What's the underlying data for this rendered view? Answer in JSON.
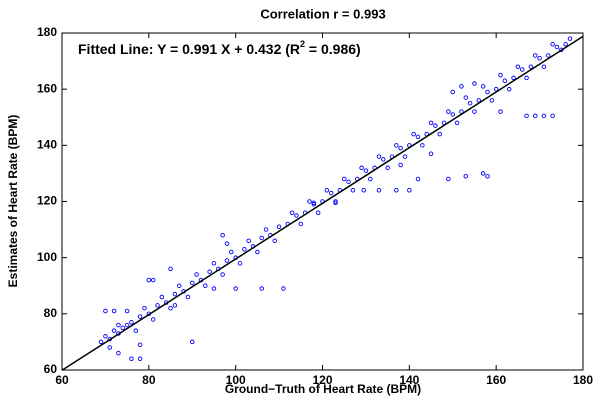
{
  "chart_data": {
    "type": "scatter",
    "title": "Correlation r = 0.993",
    "annotation": [
      "Fitted Line: Y = 0.991 X + 0.432 (R",
      "2",
      " = 0.986)"
    ],
    "xlabel": "Ground−Truth of Heart Rate (BPM)",
    "ylabel": "Estimates of Heart Rate (BPM)",
    "xlim": [
      60,
      180
    ],
    "ylim": [
      60,
      180
    ],
    "xticks": [
      60,
      80,
      100,
      120,
      140,
      160,
      180
    ],
    "yticks": [
      60,
      80,
      100,
      120,
      140,
      160,
      180
    ],
    "color": "#0000ff",
    "x": [
      69,
      70,
      71,
      72,
      73,
      74,
      75,
      76,
      78,
      80,
      82,
      84,
      86,
      88,
      90,
      92,
      94,
      96,
      98,
      100,
      102,
      104,
      106,
      108,
      110,
      112,
      114,
      116,
      118,
      120,
      122,
      124,
      126,
      128,
      130,
      132,
      134,
      136,
      138,
      140,
      142,
      144,
      146,
      148,
      150,
      152,
      154,
      156,
      158,
      160,
      162,
      164,
      166,
      168,
      170,
      172,
      174,
      176,
      177,
      71,
      73,
      77,
      79,
      81,
      83,
      85,
      87,
      89,
      91,
      93,
      95,
      97,
      99,
      101,
      103,
      105,
      107,
      109,
      113,
      115,
      117,
      119,
      121,
      123,
      125,
      127,
      129,
      131,
      133,
      135,
      137,
      139,
      141,
      143,
      145,
      147,
      149,
      151,
      153,
      155,
      157,
      159,
      161,
      163,
      165,
      167,
      169,
      171,
      173,
      175,
      70,
      72,
      75,
      76,
      78,
      73,
      85,
      90,
      95,
      100,
      106,
      111,
      97,
      98,
      129.5,
      133,
      137,
      140,
      142,
      149,
      153,
      157,
      158,
      167,
      169,
      171,
      173,
      161,
      152,
      150,
      155,
      118,
      123,
      138,
      145,
      80,
      81,
      86,
      78
    ],
    "values": [
      70,
      72,
      71,
      74,
      73,
      75,
      76,
      77,
      79,
      80,
      83,
      84,
      87,
      88,
      91,
      92,
      95,
      96,
      99,
      100,
      103,
      104,
      107,
      108,
      111,
      112,
      115,
      116,
      119,
      120,
      123,
      124,
      127,
      128,
      131,
      132,
      135,
      136,
      139,
      140,
      143,
      144,
      147,
      148,
      151,
      152,
      155,
      156,
      159,
      160,
      163,
      164,
      167,
      168,
      171,
      172,
      175,
      176,
      178,
      68,
      76,
      74,
      82,
      78,
      86,
      82,
      90,
      86,
      94,
      90,
      98,
      94,
      102,
      98,
      106,
      102,
      110,
      106,
      116,
      112,
      120,
      116,
      124,
      120,
      128,
      124,
      132,
      128,
      136,
      132,
      140,
      136,
      144,
      140,
      148,
      144,
      152,
      148,
      157,
      152,
      161,
      156,
      165,
      160,
      168,
      164,
      172,
      168,
      176,
      174,
      81,
      81,
      81,
      64,
      64,
      66,
      96,
      70,
      89,
      89,
      89,
      89,
      108,
      105,
      124,
      124,
      124,
      124,
      128,
      128,
      129,
      130,
      129,
      150.5,
      150.5,
      150.5,
      150.5,
      152,
      161,
      159,
      162,
      119.5,
      119.5,
      133,
      137,
      92,
      92,
      83,
      69
    ],
    "fitted_line": {
      "x": [
        60,
        180
      ],
      "values": [
        59.892,
        178.812
      ],
      "color": "#000000"
    }
  }
}
